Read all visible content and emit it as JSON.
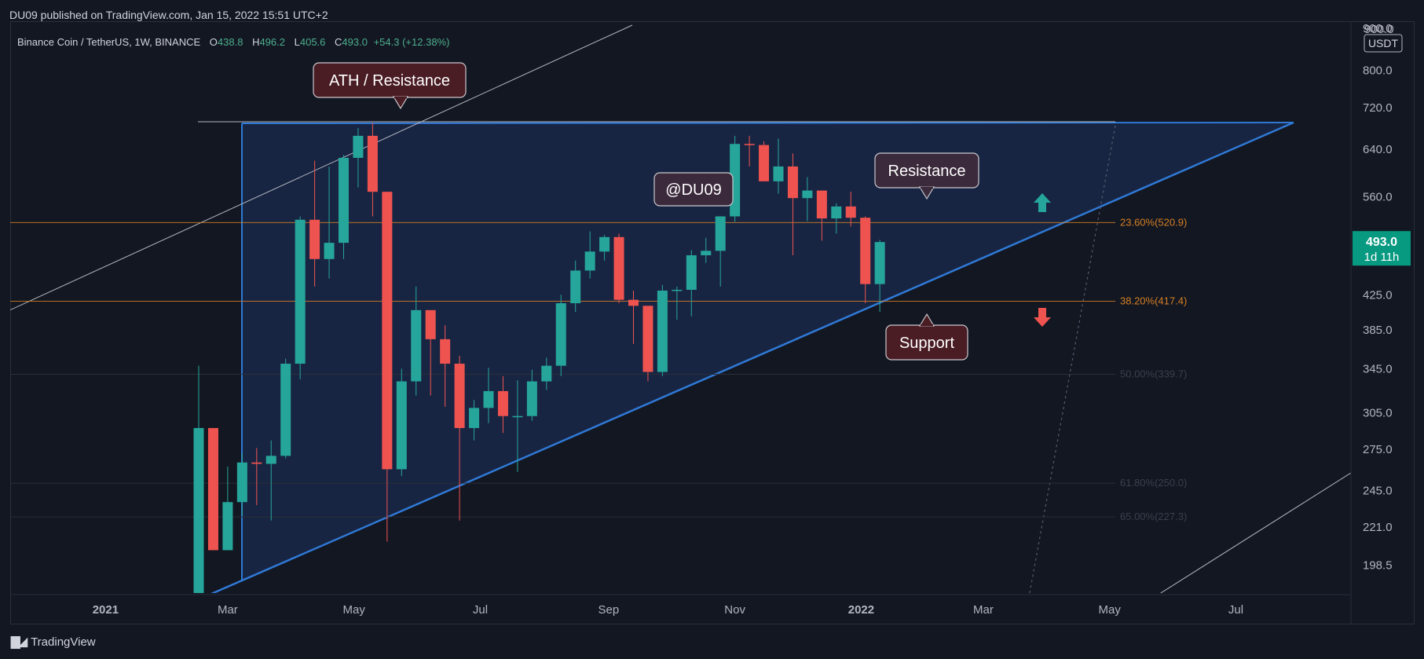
{
  "header": {
    "published": "DU09 published on TradingView.com, Jan 15, 2022 15:51 UTC+2"
  },
  "legend": {
    "symbol": "Binance Coin / TetherUS, 1W, BINANCE",
    "o_label": "O",
    "o": "438.8",
    "h_label": "H",
    "h": "496.2",
    "l_label": "L",
    "l": "405.6",
    "c_label": "C",
    "c": "493.0",
    "change": "+54.3 (+12.38%)"
  },
  "footer": {
    "brand": "TradingView",
    "logo_icon": "tradingview-logo-icon"
  },
  "colors": {
    "background": "#131722",
    "up": "#26a69a",
    "down": "#ef5350",
    "fib": "#d67f22",
    "triangle": "#2f79d6",
    "triangle_fill": "#1b2b4d",
    "price_badge": "#089981"
  },
  "chart_data": {
    "type": "candlestick",
    "price_scale": "log",
    "currency": "USDT",
    "y_ticks": [
      "198.5",
      "221.0",
      "245.0",
      "275.0",
      "305.0",
      "345.0",
      "385.0",
      "425.0",
      "560.0",
      "640.0",
      "720.0",
      "800.0",
      "900.0"
    ],
    "x_ticks": [
      "Nov",
      "2021",
      "Mar",
      "May",
      "Jul",
      "Sep",
      "Nov",
      "2022",
      "Mar",
      "May",
      "Jul"
    ],
    "x_range": [
      "2020-10-26",
      "2022-07-25"
    ],
    "y_range": [
      175,
      900
    ],
    "current_price": {
      "value": "493.0",
      "countdown": "1d 11h"
    },
    "fib_levels": [
      {
        "label": "23.60%(520.9)",
        "value": 520.9,
        "visible": true
      },
      {
        "label": "38.20%(417.4)",
        "value": 417.4,
        "visible": true
      },
      {
        "label": "50.00%(339.7)",
        "value": 339.7,
        "visible": false
      },
      {
        "label": "61.80%(250.0)",
        "value": 250.0,
        "visible": false
      },
      {
        "label": "65.00%(227.3)",
        "value": 227.3,
        "visible": false
      }
    ],
    "annotations": [
      {
        "text": "ATH / Resistance",
        "style": "dark-red"
      },
      {
        "text": "@DU09",
        "style": "purple"
      },
      {
        "text": "Resistance",
        "style": "purple"
      },
      {
        "text": "Support",
        "style": "dark-red"
      }
    ],
    "arrows": [
      {
        "direction": "up",
        "color": "#26a69a"
      },
      {
        "direction": "down",
        "color": "#ef5350"
      }
    ],
    "candles": [
      {
        "date": "2021-02-15",
        "o": 180,
        "h": 348,
        "l": 170,
        "c": 292
      },
      {
        "date": "2021-02-22",
        "o": 292,
        "h": 292,
        "l": 207,
        "c": 207
      },
      {
        "date": "2021-03-01",
        "o": 207,
        "h": 262,
        "l": 207,
        "c": 237
      },
      {
        "date": "2021-03-08",
        "o": 237,
        "h": 272,
        "l": 228,
        "c": 265
      },
      {
        "date": "2021-03-15",
        "o": 265,
        "h": 276,
        "l": 235,
        "c": 264
      },
      {
        "date": "2021-03-22",
        "o": 264,
        "h": 282,
        "l": 225,
        "c": 270
      },
      {
        "date": "2021-03-29",
        "o": 270,
        "h": 355,
        "l": 268,
        "c": 350
      },
      {
        "date": "2021-04-05",
        "o": 350,
        "h": 530,
        "l": 335,
        "c": 525
      },
      {
        "date": "2021-04-12",
        "o": 525,
        "h": 620,
        "l": 435,
        "c": 470
      },
      {
        "date": "2021-04-19",
        "o": 470,
        "h": 610,
        "l": 445,
        "c": 492
      },
      {
        "date": "2021-04-26",
        "o": 492,
        "h": 630,
        "l": 470,
        "c": 625
      },
      {
        "date": "2021-05-03",
        "o": 625,
        "h": 680,
        "l": 575,
        "c": 665
      },
      {
        "date": "2021-05-10",
        "o": 665,
        "h": 690,
        "l": 530,
        "c": 568
      },
      {
        "date": "2021-05-17",
        "o": 568,
        "h": 568,
        "l": 212,
        "c": 260
      },
      {
        "date": "2021-05-24",
        "o": 260,
        "h": 345,
        "l": 255,
        "c": 333
      },
      {
        "date": "2021-05-31",
        "o": 333,
        "h": 435,
        "l": 320,
        "c": 407
      },
      {
        "date": "2021-06-07",
        "o": 407,
        "h": 405,
        "l": 320,
        "c": 375
      },
      {
        "date": "2021-06-14",
        "o": 375,
        "h": 390,
        "l": 310,
        "c": 350
      },
      {
        "date": "2021-06-21",
        "o": 350,
        "h": 358,
        "l": 225,
        "c": 292
      },
      {
        "date": "2021-06-28",
        "o": 292,
        "h": 316,
        "l": 282,
        "c": 309
      },
      {
        "date": "2021-07-05",
        "o": 309,
        "h": 346,
        "l": 296,
        "c": 324
      },
      {
        "date": "2021-07-12",
        "o": 324,
        "h": 338,
        "l": 288,
        "c": 302
      },
      {
        "date": "2021-07-19",
        "o": 302,
        "h": 334,
        "l": 258,
        "c": 302
      },
      {
        "date": "2021-07-26",
        "o": 302,
        "h": 344,
        "l": 298,
        "c": 333
      },
      {
        "date": "2021-08-02",
        "o": 333,
        "h": 356,
        "l": 325,
        "c": 348
      },
      {
        "date": "2021-08-09",
        "o": 348,
        "h": 425,
        "l": 338,
        "c": 415
      },
      {
        "date": "2021-08-16",
        "o": 415,
        "h": 468,
        "l": 405,
        "c": 455
      },
      {
        "date": "2021-08-23",
        "o": 455,
        "h": 508,
        "l": 445,
        "c": 480
      },
      {
        "date": "2021-08-30",
        "o": 480,
        "h": 503,
        "l": 468,
        "c": 500
      },
      {
        "date": "2021-09-06",
        "o": 500,
        "h": 505,
        "l": 415,
        "c": 419
      },
      {
        "date": "2021-09-13",
        "o": 419,
        "h": 430,
        "l": 370,
        "c": 412
      },
      {
        "date": "2021-09-20",
        "o": 412,
        "h": 412,
        "l": 333,
        "c": 342
      },
      {
        "date": "2021-09-27",
        "o": 342,
        "h": 437,
        "l": 338,
        "c": 430
      },
      {
        "date": "2021-10-04",
        "o": 430,
        "h": 435,
        "l": 396,
        "c": 431
      },
      {
        "date": "2021-10-11",
        "o": 431,
        "h": 482,
        "l": 400,
        "c": 475
      },
      {
        "date": "2021-10-18",
        "o": 475,
        "h": 499,
        "l": 465,
        "c": 481
      },
      {
        "date": "2021-10-25",
        "o": 481,
        "h": 530,
        "l": 435,
        "c": 530
      },
      {
        "date": "2021-11-01",
        "o": 530,
        "h": 665,
        "l": 522,
        "c": 650
      },
      {
        "date": "2021-11-08",
        "o": 650,
        "h": 665,
        "l": 610,
        "c": 648
      },
      {
        "date": "2021-11-15",
        "o": 648,
        "h": 655,
        "l": 585,
        "c": 585
      },
      {
        "date": "2021-11-22",
        "o": 585,
        "h": 660,
        "l": 565,
        "c": 610
      },
      {
        "date": "2021-11-29",
        "o": 610,
        "h": 633,
        "l": 475,
        "c": 558
      },
      {
        "date": "2021-12-06",
        "o": 558,
        "h": 592,
        "l": 523,
        "c": 570
      },
      {
        "date": "2021-12-13",
        "o": 570,
        "h": 570,
        "l": 495,
        "c": 527
      },
      {
        "date": "2021-12-20",
        "o": 527,
        "h": 550,
        "l": 505,
        "c": 545
      },
      {
        "date": "2021-12-27",
        "o": 545,
        "h": 568,
        "l": 515,
        "c": 528
      },
      {
        "date": "2022-01-03",
        "o": 528,
        "h": 530,
        "l": 415,
        "c": 438
      },
      {
        "date": "2022-01-10",
        "o": 438,
        "h": 496,
        "l": 405,
        "c": 493
      }
    ]
  }
}
